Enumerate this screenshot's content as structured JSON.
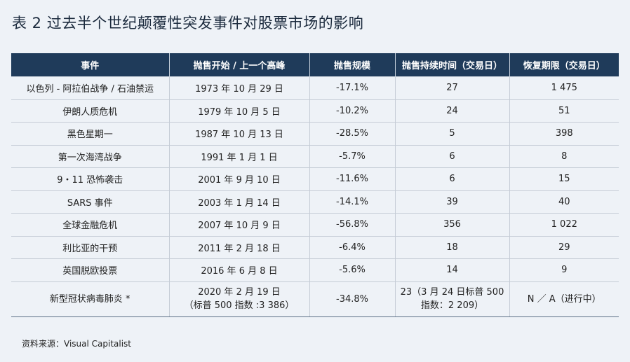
{
  "title": "表 2  过去半个世纪颠覆性突发事件对股票市场的影响",
  "table": {
    "headers": [
      "事件",
      "抛售开始 / 上一个高峰",
      "抛售规模",
      "抛售持续时间（交易日）",
      "恢复期限（交易日）"
    ],
    "rows": [
      {
        "event": "以色列 - 阿拉伯战争 / 石油禁运",
        "start": "1973 年 10 月 29 日",
        "scale": "-17.1%",
        "duration": "27",
        "recovery": "1 475"
      },
      {
        "event": "伊朗人质危机",
        "start": "1979 年 10 月 5 日",
        "scale": "-10.2%",
        "duration": "24",
        "recovery": "51"
      },
      {
        "event": "黑色星期一",
        "start": "1987 年 10 月 13 日",
        "scale": "-28.5%",
        "duration": "5",
        "recovery": "398"
      },
      {
        "event": "第一次海湾战争",
        "start": "1991 年 1 月 1 日",
        "scale": "-5.7%",
        "duration": "6",
        "recovery": "8"
      },
      {
        "event": "9・11 恐怖袭击",
        "start": "2001 年 9 月 10 日",
        "scale": "-11.6%",
        "duration": "6",
        "recovery": "15"
      },
      {
        "event": "SARS 事件",
        "start": "2003 年 1 月 14 日",
        "scale": "-14.1%",
        "duration": "39",
        "recovery": "40"
      },
      {
        "event": "全球金融危机",
        "start": "2007 年 10 月 9 日",
        "scale": "-56.8%",
        "duration": "356",
        "recovery": "1 022"
      },
      {
        "event": "利比亚的干预",
        "start": "2011 年 2 月 18 日",
        "scale": "-6.4%",
        "duration": "18",
        "recovery": "29"
      },
      {
        "event": "英国脱欧投票",
        "start": "2016 年 6 月 8 日",
        "scale": "-5.6%",
        "duration": "14",
        "recovery": "9"
      },
      {
        "event": "新型冠状病毒肺炎 *",
        "start": "2020 年 2 月 19 日",
        "start_line2": "（标普 500 指数 :3 386）",
        "scale": "-34.8%",
        "duration": "23（3 月 24 日标普 500",
        "duration_line2": "指数：2 209）",
        "recovery": "N ／ A（进行中）"
      }
    ]
  },
  "source": "资料来源：Visual  Capitalist"
}
